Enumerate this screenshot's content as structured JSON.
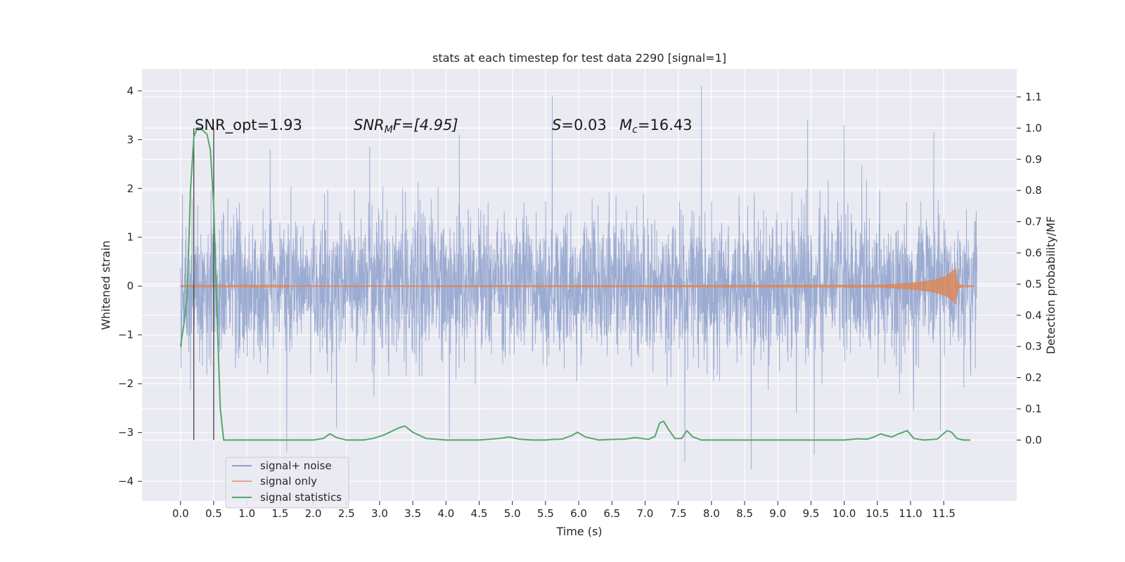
{
  "chart_data": {
    "type": "line",
    "title": "stats at each timestep for test data 2290 [signal=1]",
    "xlabel": "Time (s)",
    "ylabel_left": "Whitened strain",
    "ylabel_right": "Detection probability/MF",
    "xlim": [
      -0.58,
      12.6
    ],
    "ylim_left": [
      -4.4,
      4.45
    ],
    "ylim_right": [
      -0.195,
      1.19
    ],
    "x_ticks": [
      "0.0",
      "0.5",
      "1.0",
      "1.5",
      "2.0",
      "2.5",
      "3.0",
      "3.5",
      "4.0",
      "4.5",
      "5.0",
      "5.5",
      "6.0",
      "6.5",
      "7.0",
      "7.5",
      "8.0",
      "8.5",
      "9.0",
      "9.5",
      "10.0",
      "10.5",
      "11.0",
      "11.5"
    ],
    "y_ticks_left": [
      "4",
      "3",
      "2",
      "1",
      "0",
      "−1",
      "−2",
      "−3",
      "−4"
    ],
    "y_ticks_right": [
      "1.1",
      "1.0",
      "0.9",
      "0.8",
      "0.7",
      "0.6",
      "0.5",
      "0.4",
      "0.3",
      "0.2",
      "0.1",
      "0.0"
    ],
    "grid": true,
    "annotations": {
      "snr_opt": "SNR_opt=1.93",
      "snr_mf_sym": "SNR",
      "snr_mf_sub": "M",
      "snr_mf_rest": "F=[4.95]",
      "s_sym": "S",
      "s_rest": "=0.03",
      "mc_sym": "M",
      "mc_sub": "c",
      "mc_rest": "=16.43"
    },
    "vlines": [
      0.2,
      0.5
    ],
    "legend": {
      "placement": "lower-left",
      "entries": [
        {
          "label": "signal+ noise",
          "color": "#8da0cb"
        },
        {
          "label": "signal only",
          "color": "#e5a48a"
        },
        {
          "label": "signal statistics",
          "color": "#55a868"
        }
      ]
    },
    "series": [
      {
        "name": "signal statistics",
        "axis": "right",
        "color": "#55a868",
        "x": [
          0.0,
          0.05,
          0.1,
          0.15,
          0.2,
          0.25,
          0.3,
          0.35,
          0.4,
          0.45,
          0.5,
          0.55,
          0.6,
          0.65,
          0.7,
          0.8,
          1.0,
          1.5,
          2.0,
          2.15,
          2.25,
          2.35,
          2.5,
          2.75,
          2.9,
          3.05,
          3.15,
          3.3,
          3.38,
          3.5,
          3.7,
          4.0,
          4.5,
          4.8,
          4.95,
          5.1,
          5.3,
          5.5,
          5.6,
          5.75,
          5.9,
          5.98,
          6.1,
          6.3,
          6.5,
          6.7,
          6.85,
          6.95,
          7.05,
          7.15,
          7.22,
          7.28,
          7.35,
          7.45,
          7.55,
          7.63,
          7.72,
          7.85,
          8.0,
          8.5,
          9.0,
          9.5,
          10.0,
          10.2,
          10.35,
          10.45,
          10.55,
          10.62,
          10.72,
          10.82,
          10.95,
          11.05,
          11.2,
          11.4,
          11.55,
          11.62,
          11.7,
          11.8,
          11.9
        ],
        "values": [
          0.3,
          0.37,
          0.46,
          0.8,
          0.97,
          1.0,
          1.0,
          0.99,
          0.98,
          0.93,
          0.75,
          0.4,
          0.1,
          0.0,
          0.0,
          0.0,
          0.0,
          0.0,
          0.0,
          0.005,
          0.02,
          0.008,
          0.0,
          0.0,
          0.005,
          0.015,
          0.025,
          0.04,
          0.045,
          0.025,
          0.005,
          0.0,
          0.0,
          0.005,
          0.01,
          0.003,
          0.0,
          0.0,
          0.002,
          0.003,
          0.015,
          0.025,
          0.01,
          0.0,
          0.002,
          0.003,
          0.008,
          0.005,
          0.002,
          0.012,
          0.055,
          0.06,
          0.035,
          0.005,
          0.005,
          0.03,
          0.01,
          0.0,
          0.0,
          0.0,
          0.0,
          0.0,
          0.0,
          0.004,
          0.003,
          0.01,
          0.02,
          0.015,
          0.01,
          0.02,
          0.03,
          0.005,
          0.0,
          0.003,
          0.03,
          0.025,
          0.005,
          0.0,
          0.0
        ]
      },
      {
        "name": "signal only",
        "axis": "left",
        "color": "#dd8452",
        "x": [
          0.0,
          10.5,
          10.8,
          11.0,
          11.2,
          11.35,
          11.45,
          11.55,
          11.6,
          11.65,
          11.68,
          11.72,
          11.8,
          11.95
        ],
        "values": [
          0.01,
          0.03,
          0.05,
          0.07,
          0.1,
          0.13,
          0.17,
          0.22,
          0.28,
          0.34,
          0.38,
          0.05,
          0.02,
          0.02
        ]
      },
      {
        "name": "signal+ noise",
        "axis": "left",
        "color": "#8da0cb",
        "duration": 12.0,
        "sigma": 0.75,
        "spikes": [
          {
            "x": 5.6,
            "y": 3.9
          },
          {
            "x": 7.85,
            "y": 4.1
          },
          {
            "x": 4.2,
            "y": 3.1
          },
          {
            "x": 9.45,
            "y": 3.4
          },
          {
            "x": 10.0,
            "y": 3.3
          },
          {
            "x": 11.35,
            "y": 3.15
          },
          {
            "x": 1.6,
            "y": -3.4
          },
          {
            "x": 8.6,
            "y": -3.75
          },
          {
            "x": 7.6,
            "y": -3.6
          },
          {
            "x": 9.55,
            "y": -3.45
          },
          {
            "x": 4.05,
            "y": -3.1
          },
          {
            "x": 2.35,
            "y": -2.9
          },
          {
            "x": 1.35,
            "y": 2.8
          },
          {
            "x": 2.85,
            "y": 2.85
          },
          {
            "x": 11.45,
            "y": -2.95
          }
        ]
      }
    ]
  }
}
